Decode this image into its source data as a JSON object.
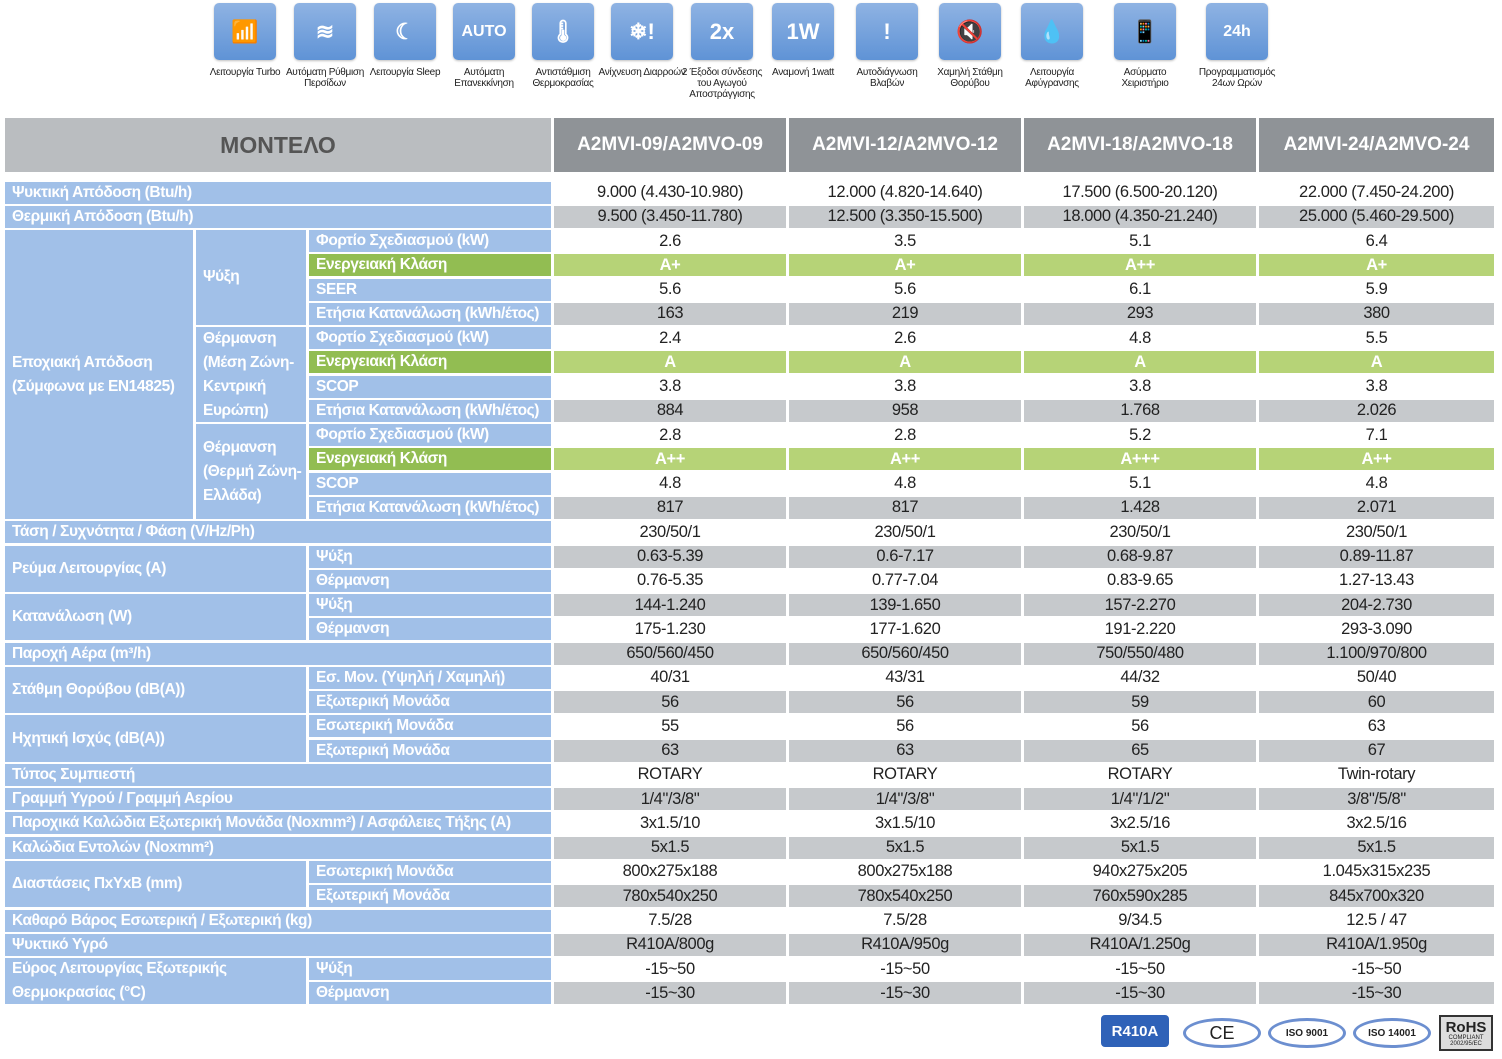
{
  "features": [
    {
      "icon": "turbo-chart-icon",
      "glyph": "📶",
      "label": "Λειτουργία Turbo"
    },
    {
      "icon": "louver-icon",
      "glyph": "≋",
      "label": "Αυτόματη Ρύθμιση Περσίδων"
    },
    {
      "icon": "moon-icon",
      "glyph": "☾",
      "label": "Λειτουργία Sleep"
    },
    {
      "icon": "auto-restart-icon",
      "glyph": "AUTO",
      "label": "Αυτόματη Επανεκκίνηση"
    },
    {
      "icon": "thermometer-icon",
      "glyph": "🌡",
      "label": "Αντιστάθμιση Θερμοκρασίας"
    },
    {
      "icon": "leak-detection-icon",
      "glyph": "❄!",
      "label": "Ανίχνευση Διαρροών"
    },
    {
      "icon": "drain-outlet-icon",
      "glyph": "2x",
      "label": "2 Έξοδοι σύνδεσης του Αγωγού Αποστράγγισης"
    },
    {
      "icon": "power-standby-icon",
      "glyph": "1W",
      "label": "Αναμονή 1watt"
    },
    {
      "icon": "self-diagnosis-icon",
      "glyph": "!",
      "label": "Αυτοδιάγνωση Βλαβών"
    },
    {
      "icon": "low-noise-icon",
      "glyph": "🔇",
      "label": "Χαμηλή Στάθμη Θορύβου"
    },
    {
      "icon": "dehumidify-icon",
      "glyph": "💧",
      "label": "Λειτουργία Αφύγρανσης"
    },
    {
      "icon": "remote-control-icon",
      "glyph": "📱",
      "label": "Ασύρματο Χειριστήριο"
    },
    {
      "icon": "timer-24h-icon",
      "glyph": "24h",
      "label": "Προγραμματισμός 24ων Ωρών"
    }
  ],
  "table": {
    "model_label": "ΜΟΝΤΕΛΟ",
    "models": [
      "A2MVI-09/A2MVO-09",
      "A2MVI-12/A2MVO-12",
      "A2MVI-18/A2MVO-18",
      "A2MVI-24/A2MVO-24"
    ],
    "specs": [
      {
        "label": "Ψυκτική Απόδοση (Btu/h)",
        "values": [
          "9.000 (4.430-10.980)",
          "12.000 (4.820-14.640)",
          "17.500 (6.500-20.120)",
          "22.000 (7.450-24.200)"
        ]
      },
      {
        "label": "Θερμική Απόδοση (Btu/h)",
        "values": [
          "9.500 (3.450-11.780)",
          "12.500 (3.350-15.500)",
          "18.000 (4.350-21.240)",
          "25.000 (5.460-29.500)"
        ]
      },
      {
        "label": "Εποχιακή Απόδοση (Σύμφωνα με EN14825)",
        "groups": [
          {
            "label": "Ψύξη",
            "rows": [
              {
                "label": "Φορτίο Σχεδιασμού (kW)",
                "values": [
                  "2.6",
                  "3.5",
                  "5.1",
                  "6.4"
                ]
              },
              {
                "label": "Ενεργειακή Κλάση",
                "energy": true,
                "values": [
                  "A+",
                  "A+",
                  "A++",
                  "A+"
                ]
              },
              {
                "label": "SEER",
                "values": [
                  "5.6",
                  "5.6",
                  "6.1",
                  "5.9"
                ]
              },
              {
                "label": "Ετήσια Κατανάλωση (kWh/έτος)",
                "values": [
                  "163",
                  "219",
                  "293",
                  "380"
                ]
              }
            ]
          },
          {
            "label": "Θέρμανση (Μέση Ζώνη-Κεντρική Ευρώπη)",
            "rows": [
              {
                "label": "Φορτίο Σχεδιασμού (kW)",
                "values": [
                  "2.4",
                  "2.6",
                  "4.8",
                  "5.5"
                ]
              },
              {
                "label": "Ενεργειακή Κλάση",
                "energy": true,
                "values": [
                  "A",
                  "A",
                  "A",
                  "A"
                ]
              },
              {
                "label": "SCOP",
                "values": [
                  "3.8",
                  "3.8",
                  "3.8",
                  "3.8"
                ]
              },
              {
                "label": "Ετήσια Κατανάλωση (kWh/έτος)",
                "values": [
                  "884",
                  "958",
                  "1.768",
                  "2.026"
                ]
              }
            ]
          },
          {
            "label": "Θέρμανση (Θερμή Ζώνη-Ελλάδα)",
            "rows": [
              {
                "label": "Φορτίο Σχεδιασμού (kW)",
                "values": [
                  "2.8",
                  "2.8",
                  "5.2",
                  "7.1"
                ]
              },
              {
                "label": "Ενεργειακή Κλάση",
                "energy": true,
                "values": [
                  "A++",
                  "A++",
                  "A+++",
                  "A++"
                ]
              },
              {
                "label": "SCOP",
                "values": [
                  "4.8",
                  "4.8",
                  "5.1",
                  "4.8"
                ]
              },
              {
                "label": "Ετήσια Κατανάλωση (kWh/έτος)",
                "values": [
                  "817",
                  "817",
                  "1.428",
                  "2.071"
                ]
              }
            ]
          }
        ]
      },
      {
        "label": "Τάση / Συχνότητα / Φάση (V/Hz/Ph)",
        "values": [
          "230/50/1",
          "230/50/1",
          "230/50/1",
          "230/50/1"
        ]
      },
      {
        "label": "Ρεύμα Λειτουργίας (A)",
        "rows": [
          {
            "label": "Ψύξη",
            "values": [
              "0.63-5.39",
              "0.6-7.17",
              "0.68-9.87",
              "0.89-11.87"
            ]
          },
          {
            "label": "Θέρμανση",
            "values": [
              "0.76-5.35",
              "0.77-7.04",
              "0.83-9.65",
              "1.27-13.43"
            ]
          }
        ]
      },
      {
        "label": "Κατανάλωση (W)",
        "rows": [
          {
            "label": "Ψύξη",
            "values": [
              "144-1.240",
              "139-1.650",
              "157-2.270",
              "204-2.730"
            ]
          },
          {
            "label": "Θέρμανση",
            "values": [
              "175-1.230",
              "177-1.620",
              "191-2.220",
              "293-3.090"
            ]
          }
        ]
      },
      {
        "label": "Παροχή Αέρα (m³/h)",
        "values": [
          "650/560/450",
          "650/560/450",
          "750/550/480",
          "1.100/970/800"
        ]
      },
      {
        "label": "Στάθμη Θορύβου (dB(A))",
        "rows": [
          {
            "label": "Εσ. Μον. (Υψηλή / Χαμηλή)",
            "values": [
              "40/31",
              "43/31",
              "44/32",
              "50/40"
            ]
          },
          {
            "label": "Εξωτερική Μονάδα",
            "values": [
              "56",
              "56",
              "59",
              "60"
            ]
          }
        ]
      },
      {
        "label": "Ηχητική Ισχύς (dB(A))",
        "rows": [
          {
            "label": "Εσωτερική Μονάδα",
            "values": [
              "55",
              "56",
              "56",
              "63"
            ]
          },
          {
            "label": "Εξωτερική Μονάδα",
            "values": [
              "63",
              "63",
              "65",
              "67"
            ]
          }
        ]
      },
      {
        "label": "Τύπος Συμπιεστή",
        "values": [
          "ROTARY",
          "ROTARY",
          "ROTARY",
          "Twin-rotary"
        ]
      },
      {
        "label": "Γραμμή Υγρού / Γραμμή Αερίου",
        "values": [
          "1/4\"/3/8\"",
          "1/4\"/3/8\"",
          "1/4\"/1/2\"",
          "3/8\"/5/8\""
        ]
      },
      {
        "label": "Παροχικά Καλώδια Εξωτερική Μονάδα (Noxmm²) / Ασφάλειες Τήξης (A)",
        "values": [
          "3x1.5/10",
          "3x1.5/10",
          "3x2.5/16",
          "3x2.5/16"
        ]
      },
      {
        "label": "Καλώδια Εντολών (Noxmm²)",
        "values": [
          "5x1.5",
          "5x1.5",
          "5x1.5",
          "5x1.5"
        ]
      },
      {
        "label": "Διαστάσεις ΠxΥxΒ (mm)",
        "rows": [
          {
            "label": "Εσωτερική Μονάδα",
            "values": [
              "800x275x188",
              "800x275x188",
              "940x275x205",
              "1.045x315x235"
            ]
          },
          {
            "label": "Εξωτερική Μονάδα",
            "values": [
              "780x540x250",
              "780x540x250",
              "760x590x285",
              "845x700x320"
            ]
          }
        ]
      },
      {
        "label": "Καθαρό Βάρος Εσωτερική / Εξωτερική (kg)",
        "values": [
          "7.5/28",
          "7.5/28",
          "9/34.5",
          "12.5 / 47"
        ]
      },
      {
        "label": "Ψυκτικό Υγρό",
        "values": [
          "R410A/800g",
          "R410A/950g",
          "R410A/1.250g",
          "R410A/1.950g"
        ]
      },
      {
        "label": "Εύρος Λειτουργίας Εξωτερικής Θερμοκρασίας (°C)",
        "rows": [
          {
            "label": "Ψύξη",
            "values": [
              "-15~50",
              "-15~50",
              "-15~50",
              "-15~50"
            ]
          },
          {
            "label": "Θέρμανση",
            "values": [
              "-15~30",
              "-15~30",
              "-15~30",
              "-15~30"
            ]
          }
        ]
      }
    ]
  },
  "badges": {
    "refrigerant": "R410A",
    "ce": "CE",
    "iso9001": "ISO 9001",
    "iso14001": "ISO 14001",
    "rohs": "RoHS",
    "rohs_sub1": "COMPLIANT",
    "rohs_sub2": "2002/95/EC"
  },
  "colors": {
    "label_blue": "#a1c0e8",
    "energy_green": "#92bd52",
    "energy_value_green": "#b6d377",
    "stripe_grey": "#c6c9cc",
    "model_header": "#8f9397",
    "refrigerant_badge": "#2f62b8"
  }
}
